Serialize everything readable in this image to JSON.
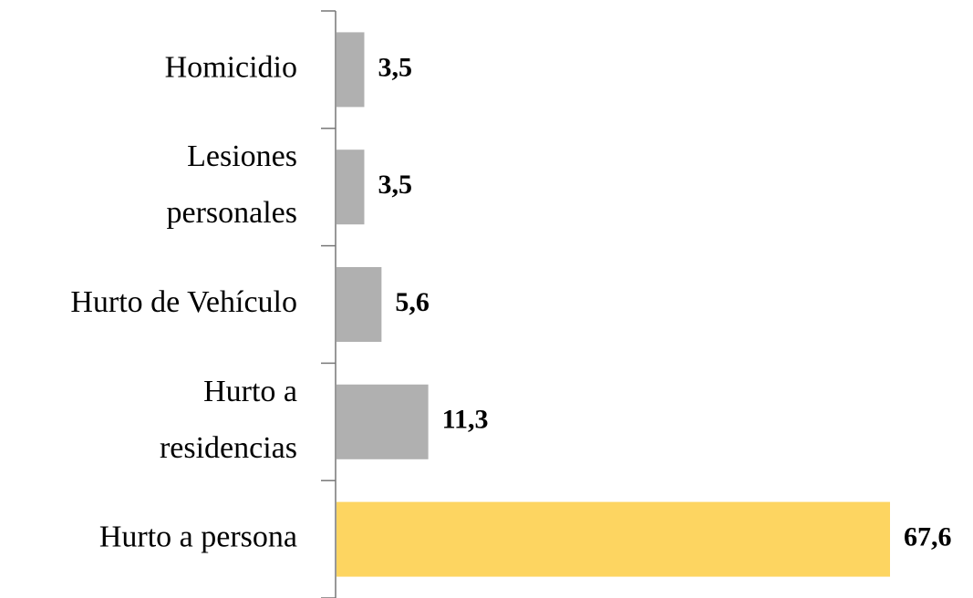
{
  "chart_data": {
    "type": "bar",
    "orientation": "horizontal",
    "categories": [
      "Homicidio",
      "Lesiones\npersonales",
      "Hurto de Vehículo",
      "Hurto a\nresidencias",
      "Hurto a persona"
    ],
    "values": [
      3.5,
      3.5,
      5.6,
      11.3,
      67.6
    ],
    "value_labels": [
      "3,5",
      "3,5",
      "5,6",
      "11,3",
      "67,6"
    ],
    "colors": [
      "#b0b0b0",
      "#b0b0b0",
      "#b0b0b0",
      "#b0b0b0",
      "#fdd561"
    ]
  }
}
